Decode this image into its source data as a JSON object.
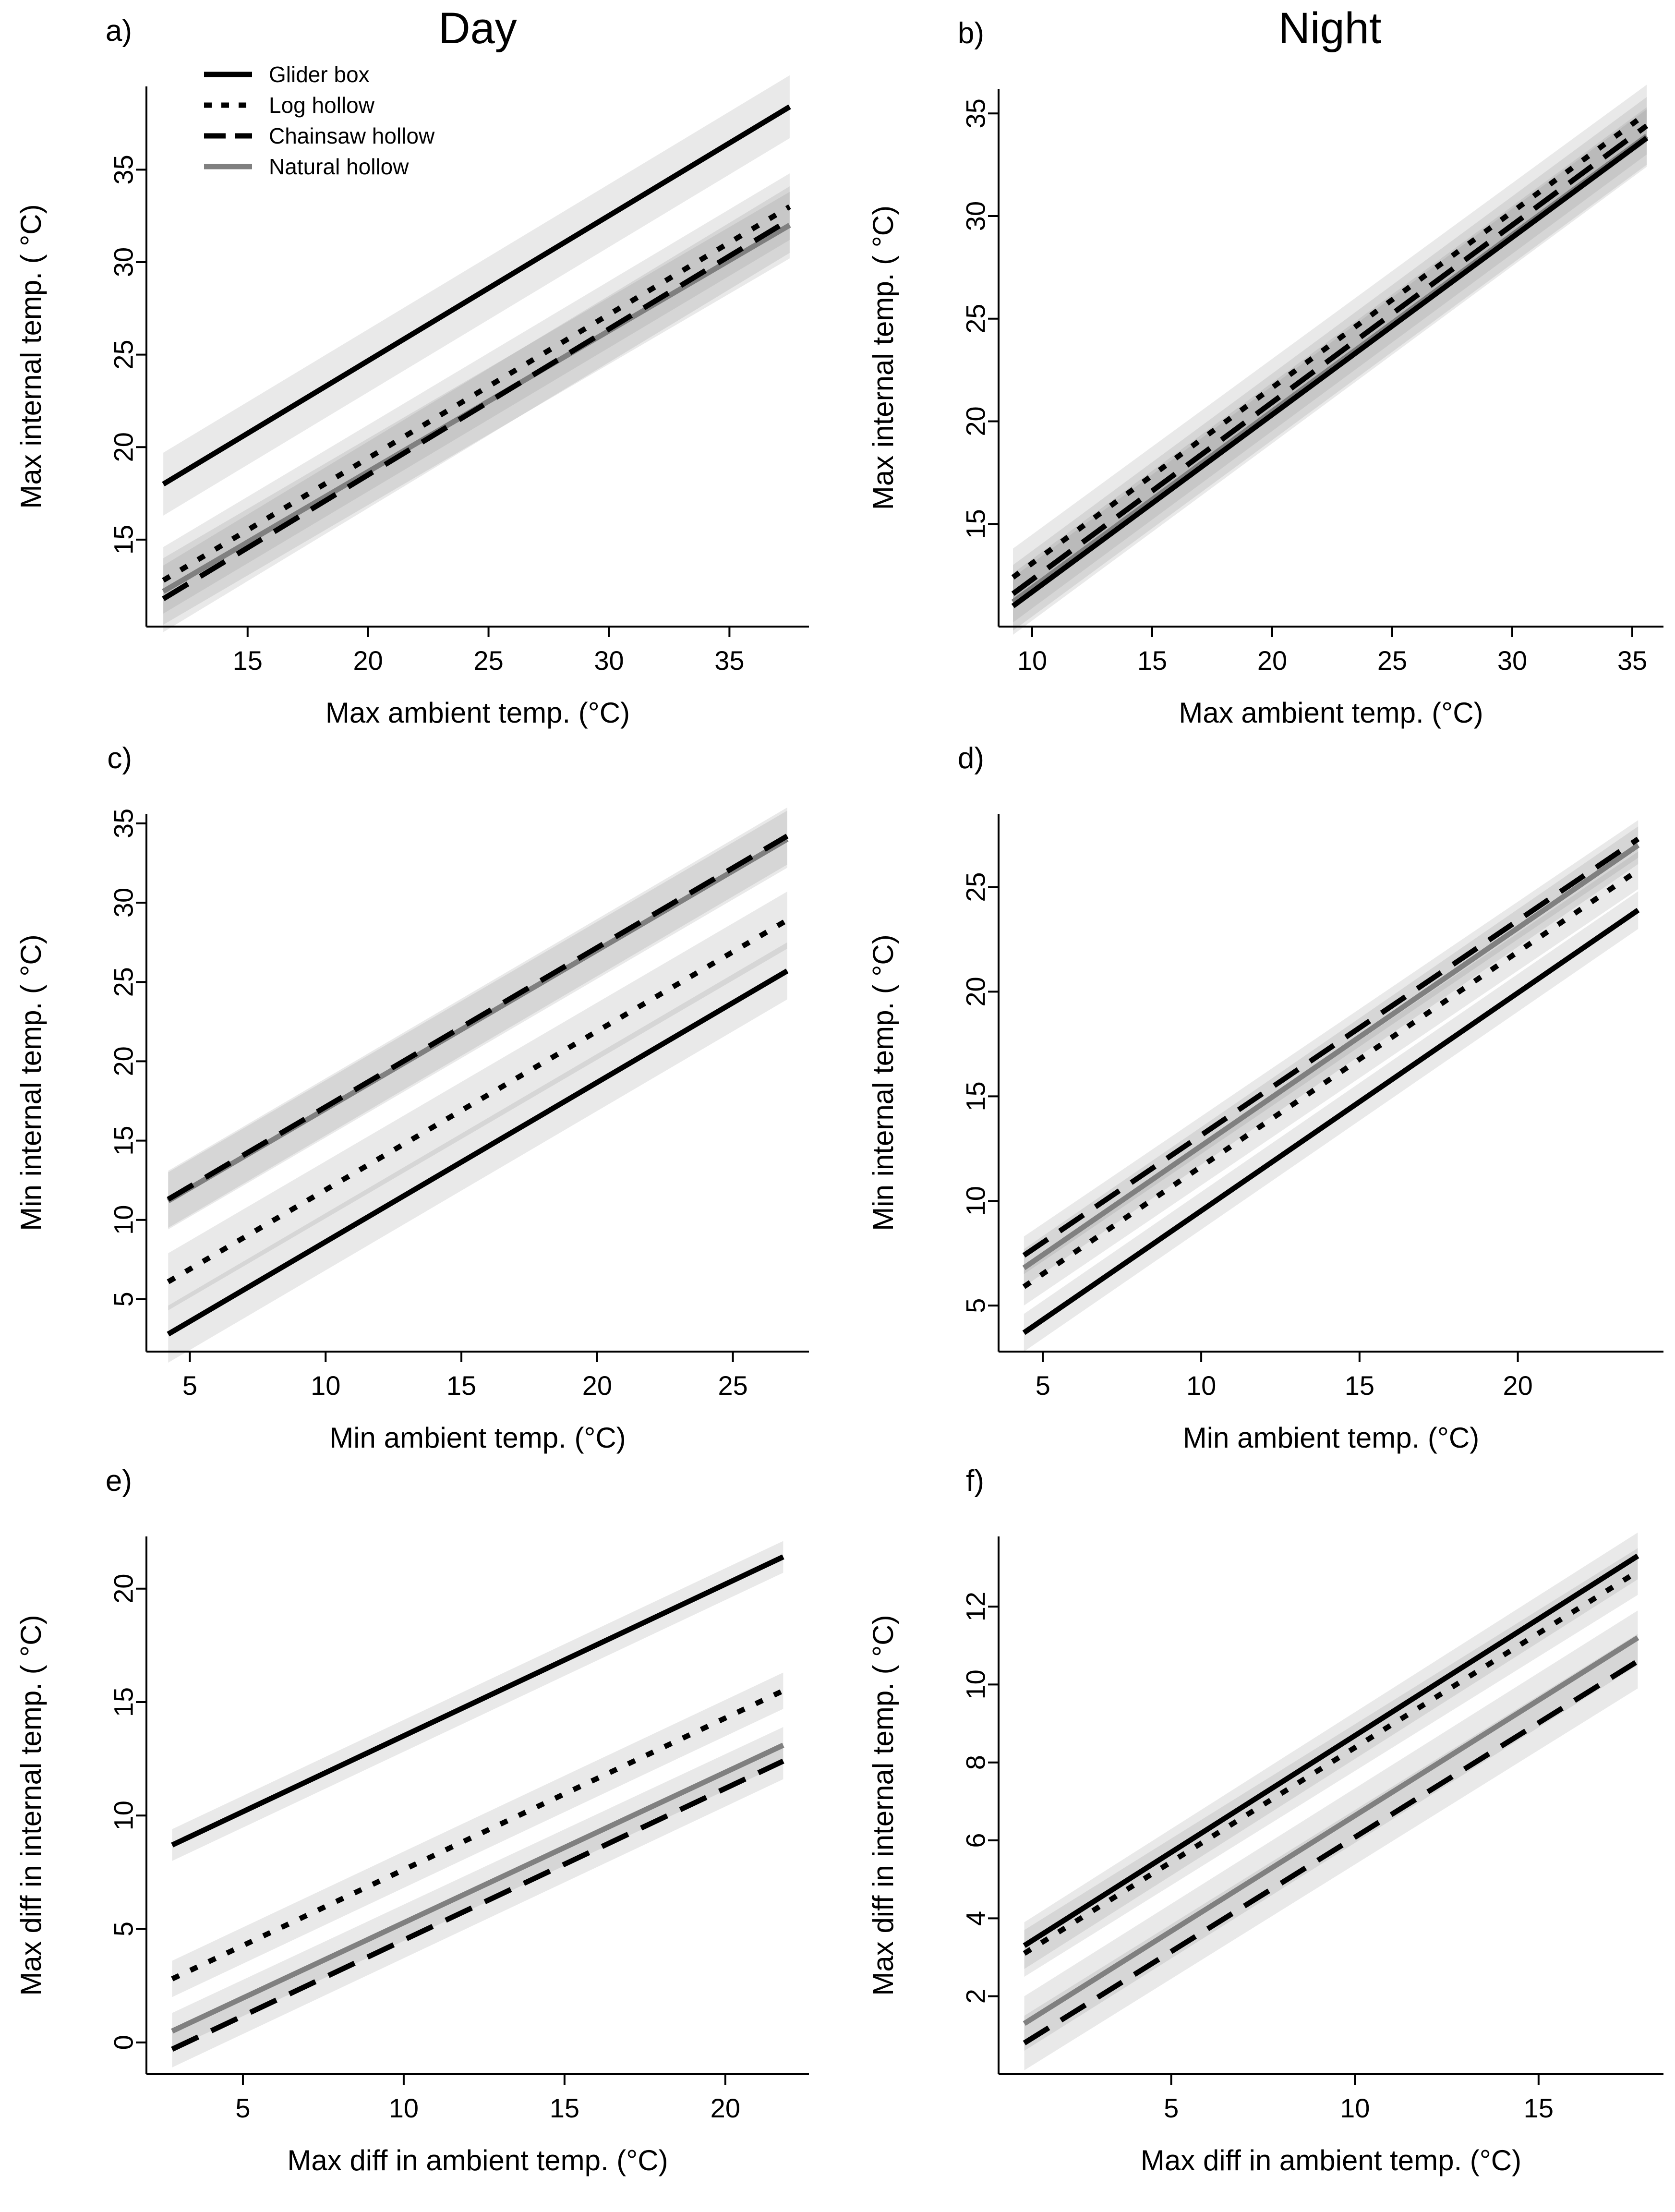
{
  "column_titles": [
    "Day",
    "Night"
  ],
  "legend": [
    {
      "label": "Glider box",
      "style": "solid",
      "color": "#000000"
    },
    {
      "label": "Log hollow",
      "style": "dotted",
      "color": "#000000"
    },
    {
      "label": "Chainsaw hollow",
      "style": "dashed",
      "color": "#000000"
    },
    {
      "label": "Natural hollow",
      "style": "solid",
      "color": "#808080"
    }
  ],
  "chart_data": [
    {
      "panel": "a)",
      "type": "line",
      "title": "Day",
      "xlabel": "Max ambient temp. (°C)",
      "ylabel": "Max internal temp. ( °C)",
      "xlim": [
        10.8,
        38.3
      ],
      "ylim": [
        10.3,
        39.5
      ],
      "xticks": [
        15,
        20,
        25,
        30,
        35
      ],
      "yticks": [
        15,
        20,
        25,
        30,
        35
      ],
      "series": [
        {
          "name": "Glider box",
          "x": [
            11.5,
            37.5
          ],
          "y": [
            18.0,
            38.4
          ],
          "ci": 1.7
        },
        {
          "name": "Log hollow",
          "x": [
            11.5,
            37.5
          ],
          "y": [
            12.8,
            33.0
          ],
          "ci": 1.8
        },
        {
          "name": "Chainsaw hollow",
          "x": [
            11.5,
            37.5
          ],
          "y": [
            11.8,
            32.3
          ],
          "ci": 1.8
        },
        {
          "name": "Natural hollow",
          "x": [
            11.5,
            37.5
          ],
          "y": [
            12.2,
            32.0
          ],
          "ci": 1.8
        }
      ]
    },
    {
      "panel": "b)",
      "type": "line",
      "title": "Night",
      "xlabel": "Max ambient temp. (°C)",
      "ylabel": "Max internal temp. ( °C)",
      "xlim": [
        8.6,
        36.3
      ],
      "ylim": [
        10.0,
        36.2
      ],
      "xticks": [
        10,
        15,
        20,
        25,
        30,
        35
      ],
      "yticks": [
        15,
        20,
        25,
        30,
        35
      ],
      "series": [
        {
          "name": "Glider box",
          "x": [
            9.2,
            35.6
          ],
          "y": [
            11.0,
            33.8
          ],
          "ci": 1.4
        },
        {
          "name": "Log hollow",
          "x": [
            9.2,
            35.6
          ],
          "y": [
            12.4,
            35.0
          ],
          "ci": 1.4
        },
        {
          "name": "Chainsaw hollow",
          "x": [
            9.2,
            35.6
          ],
          "y": [
            11.6,
            34.4
          ],
          "ci": 1.4
        },
        {
          "name": "Natural hollow",
          "x": [
            9.2,
            35.6
          ],
          "y": [
            11.2,
            33.9
          ],
          "ci": 1.4
        }
      ]
    },
    {
      "panel": "c)",
      "type": "line",
      "title": "",
      "xlabel": "Min ambient temp. (°C)",
      "ylabel": "Min internal temp. ( °C)",
      "xlim": [
        3.4,
        27.8
      ],
      "ylim": [
        1.7,
        35.6
      ],
      "xticks": [
        5,
        10,
        15,
        20,
        25
      ],
      "yticks": [
        5,
        10,
        15,
        20,
        25,
        30,
        35
      ],
      "series": [
        {
          "name": "Glider box",
          "x": [
            4.2,
            27.0
          ],
          "y": [
            2.8,
            25.7
          ],
          "ci": 1.8
        },
        {
          "name": "Log hollow",
          "x": [
            4.2,
            27.0
          ],
          "y": [
            6.1,
            28.9
          ],
          "ci": 1.8
        },
        {
          "name": "Chainsaw hollow",
          "x": [
            4.2,
            27.0
          ],
          "y": [
            11.3,
            34.2
          ],
          "ci": 1.8
        },
        {
          "name": "Natural hollow",
          "x": [
            4.2,
            27.0
          ],
          "y": [
            11.2,
            34.0
          ],
          "ci": 1.8
        }
      ]
    },
    {
      "panel": "d)",
      "type": "line",
      "title": "",
      "xlabel": "Min ambient temp. (°C)",
      "ylabel": "Min internal temp. ( °C)",
      "xlim": [
        3.6,
        24.6
      ],
      "ylim": [
        2.8,
        28.5
      ],
      "xticks": [
        5,
        10,
        15,
        20
      ],
      "yticks": [
        5,
        10,
        15,
        20,
        25
      ],
      "series": [
        {
          "name": "Glider box",
          "x": [
            4.4,
            23.8
          ],
          "y": [
            3.7,
            23.9
          ],
          "ci": 0.9
        },
        {
          "name": "Log hollow",
          "x": [
            4.4,
            23.8
          ],
          "y": [
            5.9,
            25.8
          ],
          "ci": 0.9
        },
        {
          "name": "Chainsaw hollow",
          "x": [
            4.4,
            23.8
          ],
          "y": [
            7.4,
            27.3
          ],
          "ci": 0.9
        },
        {
          "name": "Natural hollow",
          "x": [
            4.4,
            23.8
          ],
          "y": [
            6.8,
            27.0
          ],
          "ci": 0.9
        }
      ]
    },
    {
      "panel": "e)",
      "type": "line",
      "title": "",
      "xlabel": "Max diff in ambient temp. (°C)",
      "ylabel": "Max diff in internal temp. ( °C)",
      "xlim": [
        2.0,
        22.6
      ],
      "ylim": [
        -1.4,
        22.3
      ],
      "xticks": [
        5,
        10,
        15,
        20
      ],
      "yticks": [
        0,
        5,
        10,
        15,
        20
      ],
      "series": [
        {
          "name": "Glider box",
          "x": [
            2.8,
            21.8
          ],
          "y": [
            8.7,
            21.4
          ],
          "ci": 0.7
        },
        {
          "name": "Log hollow",
          "x": [
            2.8,
            21.8
          ],
          "y": [
            2.8,
            15.5
          ],
          "ci": 0.8
        },
        {
          "name": "Chainsaw hollow",
          "x": [
            2.8,
            21.8
          ],
          "y": [
            -0.3,
            12.4
          ],
          "ci": 0.8
        },
        {
          "name": "Natural hollow",
          "x": [
            2.8,
            21.8
          ],
          "y": [
            0.5,
            13.1
          ],
          "ci": 0.8
        }
      ]
    },
    {
      "panel": "f)",
      "type": "line",
      "title": "",
      "xlabel": "Max diff in ambient temp. (°C)",
      "ylabel": "Max diff in internal temp. ( °C)",
      "xlim": [
        0.3,
        18.4
      ],
      "ylim": [
        0.0,
        13.8
      ],
      "xticks": [
        5,
        10,
        15
      ],
      "yticks": [
        2,
        4,
        6,
        8,
        10,
        12
      ],
      "series": [
        {
          "name": "Glider box",
          "x": [
            1.0,
            17.7
          ],
          "y": [
            3.3,
            13.3
          ],
          "ci": 0.6
        },
        {
          "name": "Log hollow",
          "x": [
            1.0,
            17.7
          ],
          "y": [
            3.1,
            12.9
          ],
          "ci": 0.6
        },
        {
          "name": "Chainsaw hollow",
          "x": [
            1.0,
            17.7
          ],
          "y": [
            0.8,
            10.6
          ],
          "ci": 0.7
        },
        {
          "name": "Natural hollow",
          "x": [
            1.0,
            17.7
          ],
          "y": [
            1.3,
            11.2
          ],
          "ci": 0.7
        }
      ]
    }
  ]
}
